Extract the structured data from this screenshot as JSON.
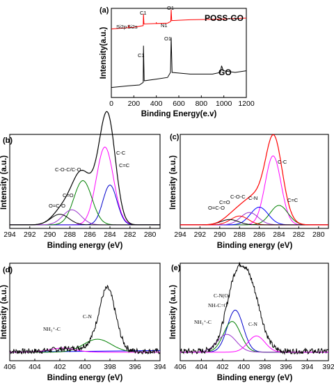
{
  "chart_data": [
    {
      "panel": "(a)",
      "type": "line",
      "xlabel": "Binding Energy(e.v)",
      "ylabel": "Intensity(a.u.)",
      "xlim": [
        0,
        1200
      ],
      "xticks": [
        0,
        200,
        400,
        600,
        800,
        1000,
        1200
      ],
      "series": [
        {
          "name": "POSS-GO",
          "color": "#ff0000",
          "points": [
            [
              0,
              0.82
            ],
            [
              100,
              0.83
            ],
            [
              150,
              0.835
            ],
            [
              155,
              0.86
            ],
            [
              160,
              0.835
            ],
            [
              200,
              0.84
            ],
            [
              283,
              0.86
            ],
            [
              286,
              1.0
            ],
            [
              290,
              0.88
            ],
            [
              400,
              0.885
            ],
            [
              399,
              0.9
            ],
            [
              402,
              0.885
            ],
            [
              500,
              0.89
            ],
            [
              528,
              0.91
            ],
            [
              532,
              1.05
            ],
            [
              537,
              0.92
            ],
            [
              700,
              0.93
            ],
            [
              900,
              0.935
            ],
            [
              1000,
              0.94
            ],
            [
              1200,
              0.95
            ]
          ]
        },
        {
          "name": "GO",
          "color": "#000000",
          "points": [
            [
              0,
              0.12
            ],
            [
              150,
              0.14
            ],
            [
              250,
              0.15
            ],
            [
              283,
              0.18
            ],
            [
              286,
              0.62
            ],
            [
              292,
              0.2
            ],
            [
              400,
              0.22
            ],
            [
              500,
              0.24
            ],
            [
              526,
              0.3
            ],
            [
              532,
              0.72
            ],
            [
              540,
              0.3
            ],
            [
              700,
              0.28
            ],
            [
              900,
              0.28
            ],
            [
              970,
              0.3
            ],
            [
              980,
              0.38
            ],
            [
              995,
              0.32
            ],
            [
              1100,
              0.3
            ],
            [
              1200,
              0.32
            ]
          ]
        }
      ],
      "annotations": [
        "Si2p",
        "Si2s",
        "C1",
        "N1",
        "O1",
        "POSS-GO",
        "C1",
        "O1",
        "GO"
      ]
    },
    {
      "panel": "(b)",
      "type": "line",
      "xlabel": "Binding energy (eV)",
      "ylabel": "Intensity (a.u.)",
      "xlim": [
        294,
        279
      ],
      "xticks": [
        294,
        292,
        290,
        288,
        286,
        284,
        282,
        280
      ],
      "peaks": [
        {
          "label": "C-C",
          "center": 284.5,
          "height": 0.88,
          "width": 0.85,
          "color": "#ff00ff"
        },
        {
          "label": "C=C",
          "center": 284.0,
          "height": 0.45,
          "width": 0.7,
          "color": "#0000cc"
        },
        {
          "label": "C-O-C/C-O",
          "center": 286.7,
          "height": 0.5,
          "width": 0.9,
          "color": "#008000"
        },
        {
          "label": "C=O",
          "center": 287.8,
          "height": 0.17,
          "width": 0.9,
          "color": "#9933cc"
        },
        {
          "label": "O=C-O",
          "center": 289.0,
          "height": 0.12,
          "width": 0.9,
          "color": "#000000"
        }
      ],
      "envelope_color": "#000000",
      "annotations": [
        "C-C",
        "C=C",
        "C-O-C/C-O",
        "C=O",
        "O=C-O"
      ]
    },
    {
      "panel": "(c)",
      "type": "line",
      "xlabel": "Binding energy (eV)",
      "ylabel": "Intensity (a.u.)",
      "xlim": [
        294,
        279
      ],
      "xticks": [
        294,
        292,
        290,
        288,
        286,
        284,
        282,
        280
      ],
      "peaks": [
        {
          "label": "C-C",
          "center": 284.6,
          "height": 0.78,
          "width": 0.8,
          "color": "#ff00ff"
        },
        {
          "label": "C=C",
          "center": 284.0,
          "height": 0.22,
          "width": 0.9,
          "color": "#008000"
        },
        {
          "label": "C-N",
          "center": 286.0,
          "height": 0.2,
          "width": 0.9,
          "color": "#0000ff"
        },
        {
          "label": "C-O-C",
          "center": 287.0,
          "height": 0.14,
          "width": 0.9,
          "color": "#9933cc"
        },
        {
          "label": "C=O",
          "center": 288.0,
          "height": 0.1,
          "width": 0.9,
          "color": "#ff0000"
        },
        {
          "label": "O=C-O",
          "center": 289.0,
          "height": 0.06,
          "width": 0.9,
          "color": "#000000"
        }
      ],
      "envelope_color": "#ff0000",
      "annotations": [
        "C-C",
        "C=C",
        "C-N",
        "C-O-C",
        "C=O",
        "O=C-O"
      ]
    },
    {
      "panel": "(d)",
      "type": "line",
      "xlabel": "Binding energy (eV)",
      "ylabel": "Intensity (a.u.)",
      "xlim": [
        406,
        394
      ],
      "xticks": [
        406,
        404,
        402,
        400,
        398,
        396,
        394
      ],
      "peaks": [
        {
          "label": "C-N",
          "center": 399.0,
          "height": 0.16,
          "width": 1.1,
          "color": "#008000"
        },
        {
          "label": "NH3+-C",
          "center": 401.8,
          "height": 0.05,
          "width": 1.0,
          "color": "#ff00ff"
        }
      ],
      "main_peak": {
        "center": 398.2,
        "height": 0.72,
        "width": 0.65
      },
      "background_color": "#0000ff",
      "raw_color": "#000000",
      "annotations": [
        "C-N",
        "NH3+-C"
      ]
    },
    {
      "panel": "(e)",
      "type": "line",
      "xlabel": "Binding energy (eV)",
      "ylabel": "Intensity (a.u.)",
      "xlim": [
        406,
        392
      ],
      "xticks": [
        406,
        404,
        402,
        400,
        398,
        396,
        394,
        392
      ],
      "peaks": [
        {
          "label": "C-N(O)",
          "center": 400.8,
          "height": 0.52,
          "width": 0.75,
          "color": "#0000cc"
        },
        {
          "label": "NH-C=O",
          "center": 401.1,
          "height": 0.38,
          "width": 0.8,
          "color": "#008000"
        },
        {
          "label": "NH3+-C",
          "center": 401.6,
          "height": 0.22,
          "width": 0.9,
          "color": "#9933cc"
        },
        {
          "label": "C-N",
          "center": 398.8,
          "height": 0.2,
          "width": 0.8,
          "color": "#ff00ff"
        }
      ],
      "main_peak": {
        "center": 399.7,
        "height": 0.82,
        "width": 1.05
      },
      "raw_color": "#000000",
      "annotations": [
        "C-N(O)",
        "NH-C=O",
        "NH3+-C",
        "C-N"
      ]
    }
  ],
  "labels": {
    "panel_a": "(a)",
    "panel_b": "(b)",
    "panel_c": "(c)",
    "panel_d": "(d)",
    "panel_e": "(e)",
    "a_xlabel": "Binding Energy(e.v)",
    "a_ylabel": "Intensity(a.u.)",
    "be_xlabel": "Binding energy (eV)",
    "int_ylabel": "Intensity (a.u.)",
    "si2p": "Si2p",
    "si2s": "Si2s",
    "c1": "C1",
    "n1": "N1",
    "o1": "O1",
    "possgo": "POSS-GO",
    "go": "GO",
    "cc": "C-C",
    "ceqc": "C=C",
    "coc_co": "C-O-C/C-O",
    "ceqo": "C=O",
    "oeqco": "O=C-O",
    "coc": "C-O-C",
    "cn": "C-N",
    "nh3c": "NH₃⁺-C",
    "cno": "C-N(O)",
    "nhceqo": "NH-C=O"
  }
}
